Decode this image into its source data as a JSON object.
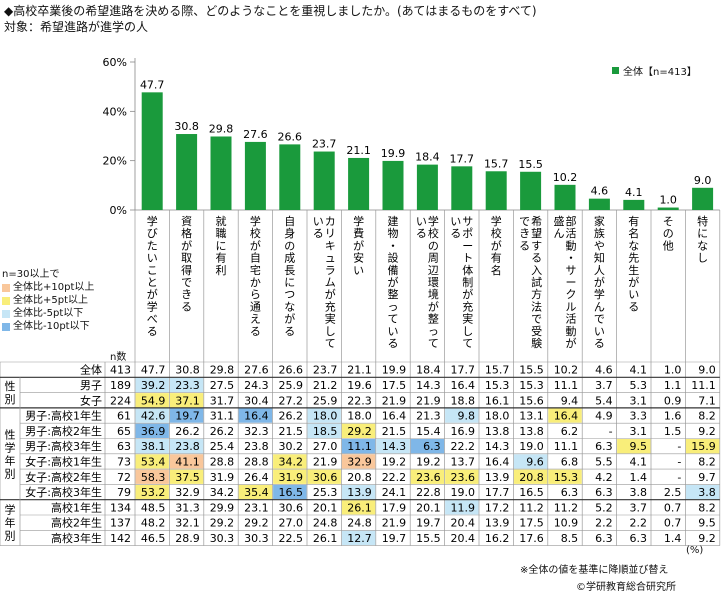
{
  "title": "◆高校卒業後の希望進路を決める際、どのようなことを重視しましたか。(あてはまるものをすべて)",
  "subtitle": "対象：希望進路が進学の人",
  "legend_label": "全体【n=413】",
  "colors": {
    "bar": "#1a9a3c",
    "orange": "#f9c79b",
    "yellow": "#f9ee7a",
    "lightblue": "#c6e6f6",
    "blue": "#7fb7e8"
  },
  "key": {
    "title": "n=30以上で",
    "items": [
      {
        "label": "全体比+10pt以上",
        "color": "#f9c79b"
      },
      {
        "label": "全体比+5pt以上",
        "color": "#f9ee7a"
      },
      {
        "label": "全体比-5pt以下",
        "color": "#c6e6f6"
      },
      {
        "label": "全体比-10pt以下",
        "color": "#7fb7e8"
      }
    ]
  },
  "table": {
    "n_header": "n数",
    "group_labels": [
      "性別",
      "学年別",
      "学年別"
    ],
    "groups": [
      {
        "label": "性別",
        "rows": [
          1,
          2
        ]
      },
      {
        "label": "性学年別",
        "rows": [
          3,
          8
        ]
      },
      {
        "label": "学年別",
        "rows": [
          9,
          11
        ]
      }
    ],
    "rows": [
      {
        "label": "全体",
        "n": "413",
        "values": [
          "47.7",
          "30.8",
          "29.8",
          "27.6",
          "26.6",
          "23.7",
          "21.1",
          "19.9",
          "18.4",
          "17.7",
          "15.7",
          "15.5",
          "10.2",
          "4.6",
          "4.1",
          "1.0",
          "9.0"
        ],
        "hl": [
          0,
          0,
          0,
          0,
          0,
          0,
          0,
          0,
          0,
          0,
          0,
          0,
          0,
          0,
          0,
          0,
          0
        ]
      },
      {
        "label": "男子",
        "n": "189",
        "values": [
          "39.2",
          "23.3",
          "27.5",
          "24.3",
          "25.9",
          "21.2",
          "19.6",
          "17.5",
          "14.3",
          "16.4",
          "15.3",
          "15.3",
          "11.1",
          "3.7",
          "5.3",
          "1.1",
          "11.1"
        ],
        "hl": [
          3,
          3,
          0,
          0,
          0,
          0,
          0,
          0,
          0,
          0,
          0,
          0,
          0,
          0,
          0,
          0,
          0
        ]
      },
      {
        "label": "女子",
        "n": "224",
        "values": [
          "54.9",
          "37.1",
          "31.7",
          "30.4",
          "27.2",
          "25.9",
          "22.3",
          "21.9",
          "21.9",
          "18.8",
          "16.1",
          "15.6",
          "9.4",
          "5.4",
          "3.1",
          "0.9",
          "7.1"
        ],
        "hl": [
          2,
          2,
          0,
          0,
          0,
          0,
          0,
          0,
          0,
          0,
          0,
          0,
          0,
          0,
          0,
          0,
          0
        ]
      },
      {
        "label": "男子:高校1年生",
        "n": "61",
        "values": [
          "42.6",
          "19.7",
          "31.1",
          "16.4",
          "26.2",
          "18.0",
          "18.0",
          "16.4",
          "21.3",
          "9.8",
          "18.0",
          "13.1",
          "16.4",
          "4.9",
          "3.3",
          "1.6",
          "8.2"
        ],
        "hl": [
          3,
          4,
          0,
          4,
          0,
          3,
          0,
          0,
          0,
          3,
          0,
          0,
          2,
          0,
          0,
          0,
          0
        ]
      },
      {
        "label": "男子:高校2年生",
        "n": "65",
        "values": [
          "36.9",
          "26.2",
          "26.2",
          "32.3",
          "21.5",
          "18.5",
          "29.2",
          "21.5",
          "15.4",
          "16.9",
          "13.8",
          "13.8",
          "6.2",
          "-",
          "3.1",
          "1.5",
          "9.2"
        ],
        "hl": [
          4,
          0,
          0,
          0,
          0,
          3,
          2,
          0,
          0,
          0,
          0,
          0,
          0,
          0,
          0,
          0,
          0
        ]
      },
      {
        "label": "男子:高校3年生",
        "n": "63",
        "values": [
          "38.1",
          "23.8",
          "25.4",
          "23.8",
          "30.2",
          "27.0",
          "11.1",
          "14.3",
          "6.3",
          "22.2",
          "14.3",
          "19.0",
          "11.1",
          "6.3",
          "9.5",
          "-",
          "15.9"
        ],
        "hl": [
          3,
          3,
          0,
          0,
          0,
          0,
          4,
          3,
          4,
          0,
          0,
          0,
          0,
          0,
          2,
          0,
          2
        ]
      },
      {
        "label": "女子:高校1年生",
        "n": "73",
        "values": [
          "53.4",
          "41.1",
          "28.8",
          "28.8",
          "34.2",
          "21.9",
          "32.9",
          "19.2",
          "19.2",
          "13.7",
          "16.4",
          "9.6",
          "6.8",
          "5.5",
          "4.1",
          "-",
          "8.2"
        ],
        "hl": [
          2,
          1,
          0,
          0,
          2,
          0,
          1,
          0,
          0,
          0,
          0,
          3,
          0,
          0,
          0,
          0,
          0
        ]
      },
      {
        "label": "女子:高校2年生",
        "n": "72",
        "values": [
          "58.3",
          "37.5",
          "31.9",
          "26.4",
          "31.9",
          "30.6",
          "20.8",
          "22.2",
          "23.6",
          "23.6",
          "13.9",
          "20.8",
          "15.3",
          "4.2",
          "1.4",
          "-",
          "9.7"
        ],
        "hl": [
          1,
          2,
          0,
          0,
          2,
          2,
          0,
          0,
          2,
          2,
          0,
          2,
          2,
          0,
          0,
          0,
          0
        ]
      },
      {
        "label": "女子:高校3年生",
        "n": "79",
        "values": [
          "53.2",
          "32.9",
          "34.2",
          "35.4",
          "16.5",
          "25.3",
          "13.9",
          "24.1",
          "22.8",
          "19.0",
          "17.7",
          "16.5",
          "6.3",
          "6.3",
          "3.8",
          "2.5",
          "3.8"
        ],
        "hl": [
          2,
          0,
          0,
          2,
          4,
          0,
          3,
          0,
          0,
          0,
          0,
          0,
          0,
          0,
          0,
          0,
          3
        ]
      },
      {
        "label": "高校1年生",
        "n": "134",
        "values": [
          "48.5",
          "31.3",
          "29.9",
          "23.1",
          "30.6",
          "20.1",
          "26.1",
          "17.9",
          "20.1",
          "11.9",
          "17.2",
          "11.2",
          "11.2",
          "5.2",
          "3.7",
          "0.7",
          "8.2"
        ],
        "hl": [
          0,
          0,
          0,
          0,
          0,
          0,
          2,
          0,
          0,
          3,
          0,
          0,
          0,
          0,
          0,
          0,
          0
        ]
      },
      {
        "label": "高校2年生",
        "n": "137",
        "values": [
          "48.2",
          "32.1",
          "29.2",
          "29.2",
          "27.0",
          "24.8",
          "24.8",
          "21.9",
          "19.7",
          "20.4",
          "13.9",
          "17.5",
          "10.9",
          "2.2",
          "2.2",
          "0.7",
          "9.5"
        ],
        "hl": [
          0,
          0,
          0,
          0,
          0,
          0,
          0,
          0,
          0,
          0,
          0,
          0,
          0,
          0,
          0,
          0,
          0
        ]
      },
      {
        "label": "高校3年生",
        "n": "142",
        "values": [
          "46.5",
          "28.9",
          "30.3",
          "30.3",
          "22.5",
          "26.1",
          "12.7",
          "19.7",
          "15.5",
          "20.4",
          "16.2",
          "17.6",
          "8.5",
          "6.3",
          "6.3",
          "1.4",
          "9.2"
        ],
        "hl": [
          0,
          0,
          0,
          0,
          0,
          0,
          3,
          0,
          0,
          0,
          0,
          0,
          0,
          0,
          0,
          0,
          0
        ]
      }
    ]
  },
  "unit": "(%)",
  "notes": [
    "※全体の値を基準に降順並び替え",
    "©学研教育総合研究所"
  ],
  "chart_data": {
    "type": "bar",
    "title": "◆高校卒業後の希望進路を決める際、どのようなことを重視しましたか。(あてはまるものをすべて)",
    "categories": [
      "学びたいことが学べる",
      "資格が取得できる",
      "就職に有利",
      "学校が自宅から通える",
      "自身の成長につながる",
      "カリキュラムが充実している",
      "学費が安い",
      "建物・設備が整っている",
      "学校の周辺環境が整っている",
      "サポート体制が充実している",
      "学校が有名",
      "希望する入試方法で受験できる",
      "部活動・サークル活動が盛ん",
      "家族や知人が学んでいる",
      "有名な先生がいる",
      "その他",
      "特になし"
    ],
    "series": [
      {
        "name": "全体【n=413】",
        "values": [
          47.7,
          30.8,
          29.8,
          27.6,
          26.6,
          23.7,
          21.1,
          19.9,
          18.4,
          17.7,
          15.7,
          15.5,
          10.2,
          4.6,
          4.1,
          1.0,
          9.0
        ]
      }
    ],
    "ylim": [
      0,
      60
    ],
    "yticks": [
      "0%",
      "20%",
      "40%",
      "60%"
    ],
    "grid": false,
    "legend": "top-right"
  }
}
